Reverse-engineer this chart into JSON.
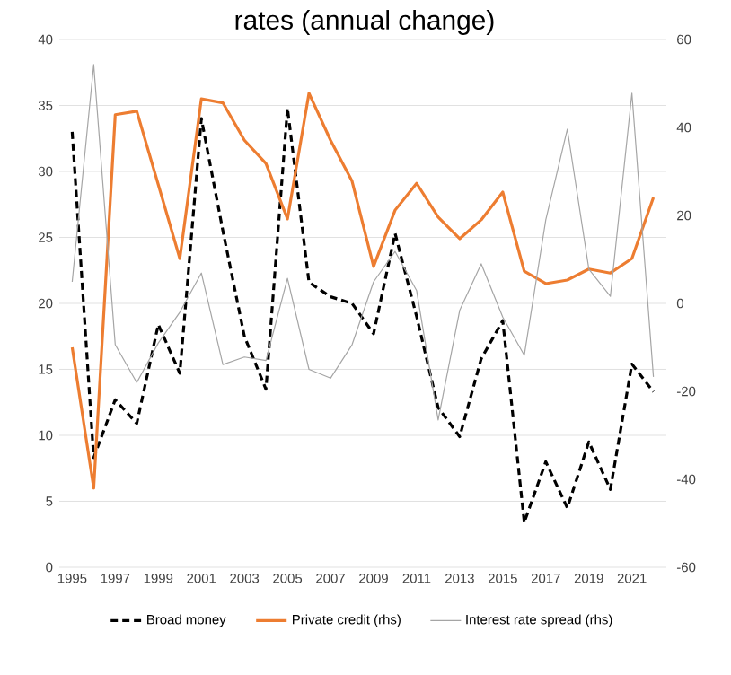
{
  "chart_data": {
    "type": "line",
    "title": "rates (annual change)",
    "x": [
      1995,
      1996,
      1997,
      1998,
      1999,
      2000,
      2001,
      2002,
      2003,
      2004,
      2005,
      2006,
      2007,
      2008,
      2009,
      2010,
      2011,
      2012,
      2013,
      2014,
      2015,
      2016,
      2017,
      2018,
      2019,
      2020,
      2021,
      2022
    ],
    "series": [
      {
        "name": "Broad money",
        "color": "#000000",
        "line_style": "dashed",
        "values": [
          33,
          8.3,
          12.7,
          10.9,
          18.4,
          14.7,
          34,
          25.5,
          17.5,
          13.5,
          34.8,
          21.6,
          20.5,
          20,
          17.7,
          25.3,
          19,
          12.1,
          9.9,
          15.8,
          18.7,
          3.4,
          8,
          4.5,
          9.5,
          5.9,
          15.4,
          13.3
        ]
      },
      {
        "name": "Private credit (rhs)",
        "color": "#ed7d31",
        "axis": "y2",
        "line_style": "solid",
        "values": [
          -10,
          -42,
          42.9,
          43.7,
          27,
          10.2,
          46.5,
          45.6,
          37.1,
          31.8,
          19.2,
          47.8,
          37.1,
          27.8,
          8.4,
          21.2,
          27.3,
          19.6,
          14.7,
          19,
          25.3,
          7.3,
          4.5,
          5.3,
          7.8,
          6.9,
          10.2,
          24.1
        ]
      },
      {
        "name": "Interest rate spread (rhs)",
        "color": "#a5a5a5",
        "axis": "y2",
        "line_style": "solid",
        "values": [
          4.9,
          54.3,
          -9.4,
          -18,
          -9,
          -2,
          6.9,
          -13.9,
          -12.2,
          -13,
          5.7,
          -15,
          -17,
          -9.4,
          4.9,
          11.8,
          2.9,
          -26.5,
          -1.6,
          9,
          -3.1,
          -11.8,
          19,
          39.6,
          7.8,
          1.6,
          47.8,
          -16.7
        ]
      }
    ],
    "xlim": [
      1994.4,
      2022.6
    ],
    "xticks": [
      1995,
      1997,
      1999,
      2001,
      2003,
      2005,
      2007,
      2009,
      2011,
      2013,
      2015,
      2017,
      2019,
      2021
    ],
    "ylim": [
      0,
      40
    ],
    "yticks": [
      0,
      5,
      10,
      15,
      20,
      25,
      30,
      35,
      40
    ],
    "y2lim": [
      -60,
      60
    ],
    "y2ticks": [
      -60,
      -40,
      -20,
      0,
      20,
      40,
      60
    ],
    "grid": "y",
    "legend": "bottom",
    "marker": "none"
  }
}
